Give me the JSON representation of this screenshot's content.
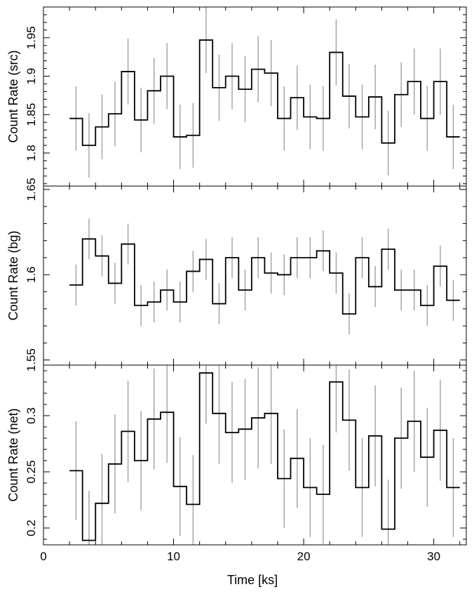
{
  "chart_data": {
    "type": "line",
    "style": "step-histogram with vertical error bars, three stacked panels sharing x-axis",
    "xlabel": "Time [ks]",
    "xlim": [
      0,
      32.5
    ],
    "xticks": [
      0,
      10,
      20,
      30
    ],
    "bin_width": 1.0,
    "x": [
      2.5,
      3.5,
      4.5,
      5.5,
      6.5,
      7.5,
      8.5,
      9.5,
      10.5,
      11.5,
      12.5,
      13.5,
      14.5,
      15.5,
      16.5,
      17.5,
      18.5,
      19.5,
      20.5,
      21.5,
      22.5,
      23.5,
      24.5,
      25.5,
      26.5,
      27.5,
      28.5,
      29.5,
      30.5,
      31.5
    ],
    "colors": {
      "line": "#000000",
      "errorbar": "#a6a6a6",
      "frame": "#000000"
    },
    "panels": [
      {
        "ylabel": "Count Rate (src)",
        "ylim": [
          1.757,
          1.99
        ],
        "yticks": [
          1.8,
          1.85,
          1.9,
          1.95
        ],
        "ytick_labels": [
          "1.8",
          "1.85",
          "1.9",
          "1.95"
        ],
        "values": [
          1.845,
          1.81,
          1.834,
          1.851,
          1.906,
          1.843,
          1.881,
          1.9,
          1.821,
          1.823,
          1.947,
          1.885,
          1.9,
          1.883,
          1.909,
          1.904,
          1.845,
          1.872,
          1.847,
          1.845,
          1.931,
          1.874,
          1.847,
          1.873,
          1.813,
          1.876,
          1.893,
          1.845,
          1.893,
          1.821
        ],
        "errors": [
          0.042,
          0.042,
          0.042,
          0.042,
          0.043,
          0.042,
          0.043,
          0.043,
          0.042,
          0.042,
          0.043,
          0.043,
          0.043,
          0.043,
          0.043,
          0.043,
          0.042,
          0.042,
          0.042,
          0.042,
          0.043,
          0.042,
          0.042,
          0.042,
          0.042,
          0.042,
          0.043,
          0.042,
          0.043,
          0.042
        ]
      },
      {
        "ylabel": "Count Rate (bg)",
        "ylim": [
          1.547,
          1.652
        ],
        "yticks": [
          1.55,
          1.6,
          1.65
        ],
        "ytick_labels": [
          "1.55",
          "1.6",
          "1.65"
        ],
        "values": [
          1.594,
          1.621,
          1.611,
          1.595,
          1.618,
          1.582,
          1.584,
          1.591,
          1.584,
          1.602,
          1.609,
          1.583,
          1.61,
          1.591,
          1.61,
          1.601,
          1.6,
          1.61,
          1.61,
          1.614,
          1.601,
          1.577,
          1.61,
          1.593,
          1.615,
          1.591,
          1.591,
          1.582,
          1.605,
          1.585
        ],
        "errors": [
          0.012,
          0.012,
          0.012,
          0.012,
          0.012,
          0.012,
          0.012,
          0.012,
          0.012,
          0.012,
          0.012,
          0.012,
          0.012,
          0.012,
          0.012,
          0.012,
          0.012,
          0.012,
          0.012,
          0.012,
          0.012,
          0.012,
          0.012,
          0.012,
          0.012,
          0.012,
          0.012,
          0.012,
          0.012,
          0.012
        ]
      },
      {
        "ylabel": "Count Rate (net)",
        "ylim": [
          0.185,
          0.345
        ],
        "yticks": [
          0.2,
          0.25,
          0.3
        ],
        "ytick_labels": [
          "0.2",
          "0.25",
          "0.3"
        ],
        "values": [
          0.251,
          0.189,
          0.222,
          0.257,
          0.286,
          0.26,
          0.297,
          0.303,
          0.237,
          0.221,
          0.338,
          0.302,
          0.285,
          0.288,
          0.298,
          0.302,
          0.244,
          0.262,
          0.236,
          0.23,
          0.33,
          0.296,
          0.236,
          0.282,
          0.199,
          0.28,
          0.295,
          0.263,
          0.287,
          0.236
        ],
        "errors": [
          0.044,
          0.044,
          0.044,
          0.044,
          0.045,
          0.044,
          0.045,
          0.045,
          0.044,
          0.044,
          0.045,
          0.045,
          0.045,
          0.045,
          0.045,
          0.045,
          0.044,
          0.044,
          0.044,
          0.044,
          0.045,
          0.045,
          0.044,
          0.045,
          0.044,
          0.045,
          0.045,
          0.044,
          0.045,
          0.044
        ]
      }
    ]
  }
}
